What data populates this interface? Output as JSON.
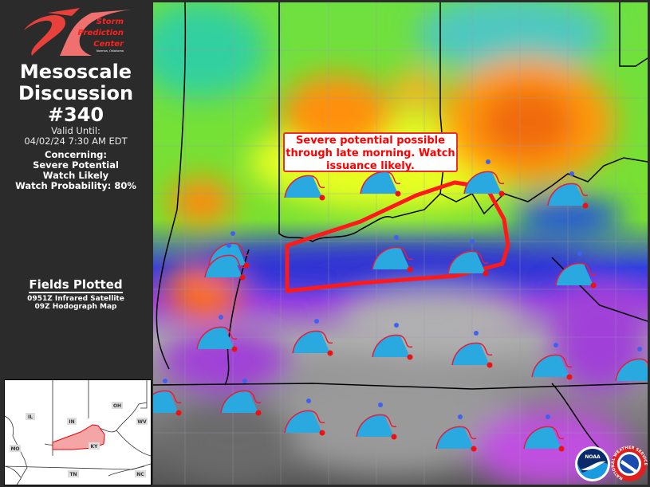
{
  "logo": {
    "line1": "Storm",
    "line2": "Prediction",
    "line3": "Center",
    "line4": "Norman, Oklahoma",
    "monogram": "SPC"
  },
  "header": {
    "title_line1": "Mesoscale",
    "title_line2": "Discussion",
    "number": "#340"
  },
  "valid": {
    "label": "Valid Until:",
    "value": "04/02/24 7:30 AM EDT"
  },
  "concerning": {
    "label": "Concerning:",
    "line1": "Severe Potential",
    "line2": "Watch Likely",
    "probability": "Watch Probability: 80%"
  },
  "fields": {
    "title": "Fields Plotted",
    "items": [
      "0951Z Infrared Satellite",
      "09Z Hodograph Map"
    ]
  },
  "inset": {
    "states": [
      "IL",
      "IN",
      "OH",
      "WV",
      "MO",
      "KY",
      "TN",
      "NC"
    ]
  },
  "annotation": {
    "text": "Severe potential possible through late morning. Watch issuance likely."
  },
  "colors": {
    "panel": "#2b2b2b",
    "polygon": "#ff1a1a",
    "hodograph": "#29a9e0",
    "annotation_text": "#ff0000"
  },
  "badges": {
    "noaa": "NOAA",
    "nws": "NATIONAL WEATHER SERVICE"
  }
}
